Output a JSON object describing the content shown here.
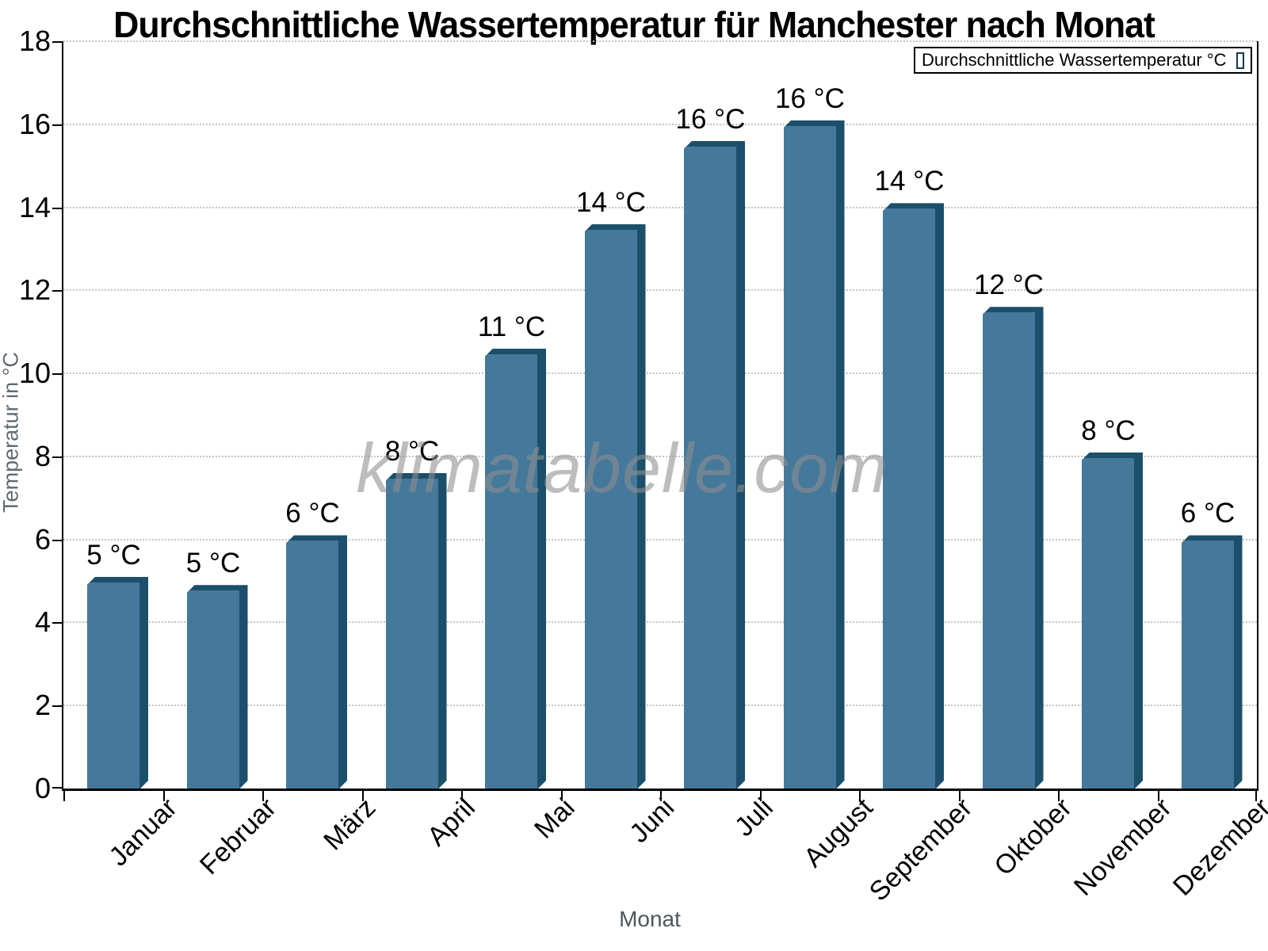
{
  "chart_data": {
    "type": "bar",
    "title": "Durchschnittliche Wassertemperatur für Manchester nach Monat",
    "xlabel": "Monat",
    "ylabel": "Temperatur in °C",
    "legend_label": "Durchschnittliche Wassertemperatur °C",
    "legend_position": "top-right",
    "watermark": "klimatabelle.com",
    "categories": [
      "Januar",
      "Februar",
      "März",
      "April",
      "Mai",
      "Juni",
      "Juli",
      "August",
      "September",
      "Oktober",
      "November",
      "Dezember"
    ],
    "values": [
      5.1,
      4.9,
      6.1,
      7.6,
      10.6,
      13.6,
      15.6,
      16.1,
      14.1,
      11.6,
      8.1,
      6.1
    ],
    "bar_labels": [
      "5 °C",
      "5 °C",
      "6 °C",
      "8 °C",
      "11 °C",
      "14 °C",
      "16 °C",
      "16 °C",
      "14 °C",
      "12 °C",
      "8 °C",
      "6 °C"
    ],
    "ylim": [
      0,
      18
    ],
    "ytick_step": 2,
    "grid": "horizontal-dotted",
    "colors": {
      "bar_face": "#45799b",
      "bar_edge": "#1b4f6b",
      "grid_line": "#c4c4c4",
      "watermark": "#8f8f8f",
      "axis_text": "#000000",
      "axis_title_text": "#5d6a73"
    }
  }
}
